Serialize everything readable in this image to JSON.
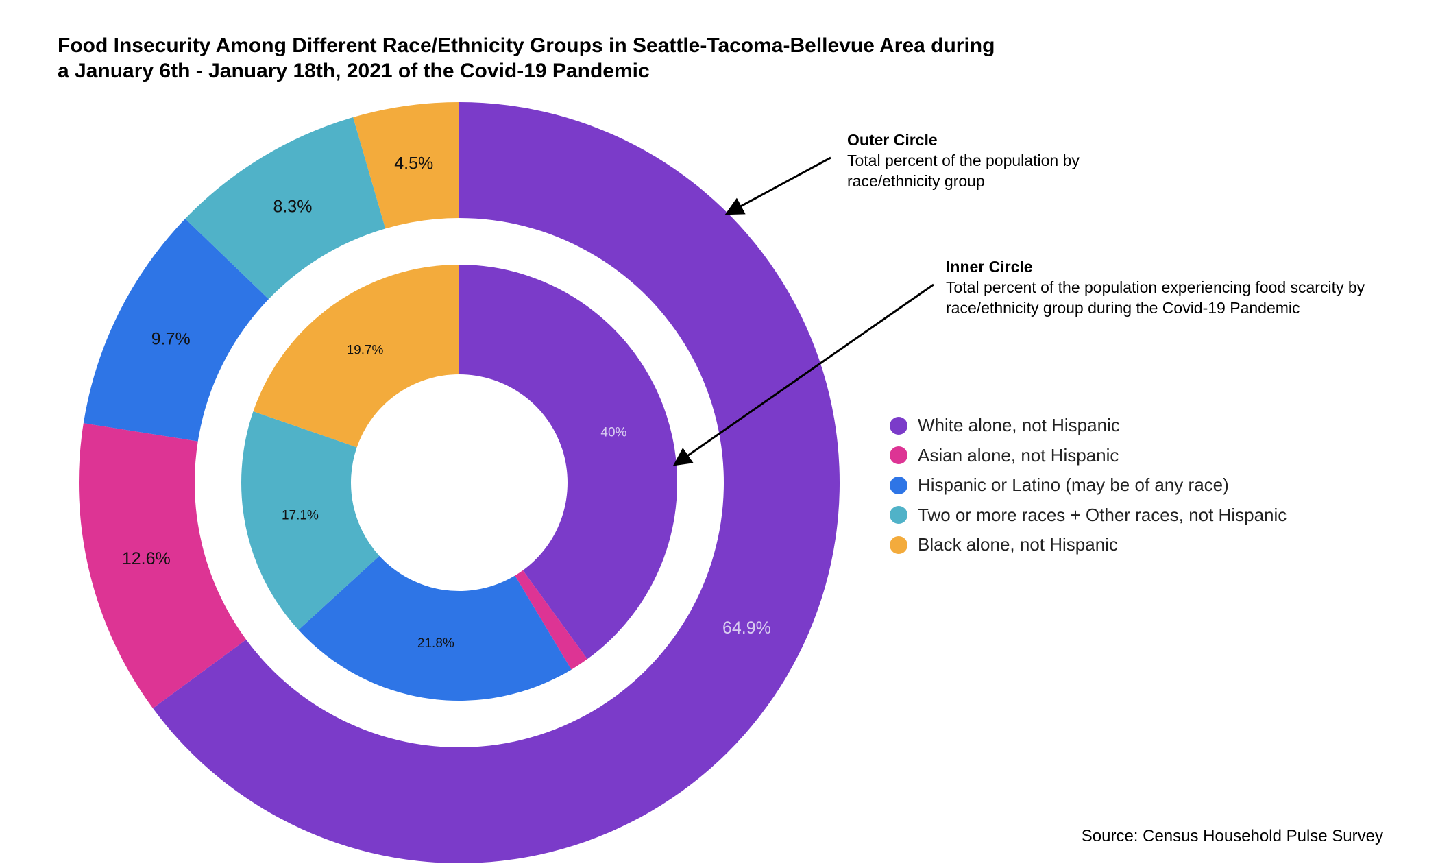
{
  "title": {
    "line1": "Food Insecurity Among Different Race/Ethnicity Groups in Seattle-Tacoma-Bellevue Area during",
    "line2": "a January 6th - January 18th, 2021 of the Covid-19 Pandemic"
  },
  "annotations": {
    "outer": {
      "heading": "Outer Circle",
      "line1": "Total percent of the population by",
      "line2": "race/ethnicity group"
    },
    "inner": {
      "heading": "Inner Circle",
      "line1": "Total percent of the population experiencing food scarcity by",
      "line2": "race/ethnicity group during the Covid-19 Pandemic"
    }
  },
  "source": "Source: Census Household Pulse Survey",
  "chart_data": {
    "type": "pie",
    "subtype": "nested-donut",
    "categories": [
      "White alone, not Hispanic",
      "Asian alone, not Hispanic",
      "Hispanic or Latino (may be of any race)",
      "Two or more races + Other races, not Hispanic",
      "Black alone, not Hispanic"
    ],
    "colors": [
      "#7b3bc9",
      "#dd3494",
      "#2e75e6",
      "#50b2c8",
      "#f3ab3c"
    ],
    "series": [
      {
        "name": "Outer Circle",
        "values": [
          64.9,
          12.6,
          9.7,
          8.3,
          4.5
        ],
        "labels": [
          "64.9%",
          "12.6%",
          "9.7%",
          "8.3%",
          "4.5%"
        ]
      },
      {
        "name": "Inner Circle",
        "values": [
          40,
          1.4,
          21.8,
          17.1,
          19.7
        ],
        "labels": [
          "40%",
          "",
          "21.8%",
          "17.1%",
          "19.7%"
        ]
      }
    ],
    "start_angle": "12 o'clock",
    "direction": "clockwise",
    "legend": {
      "position": "right",
      "items": [
        "White alone, not Hispanic",
        "Asian alone, not Hispanic",
        "Hispanic or Latino (may be of any race)",
        "Two or more races + Other races, not Hispanic",
        "Black alone, not Hispanic"
      ]
    }
  }
}
